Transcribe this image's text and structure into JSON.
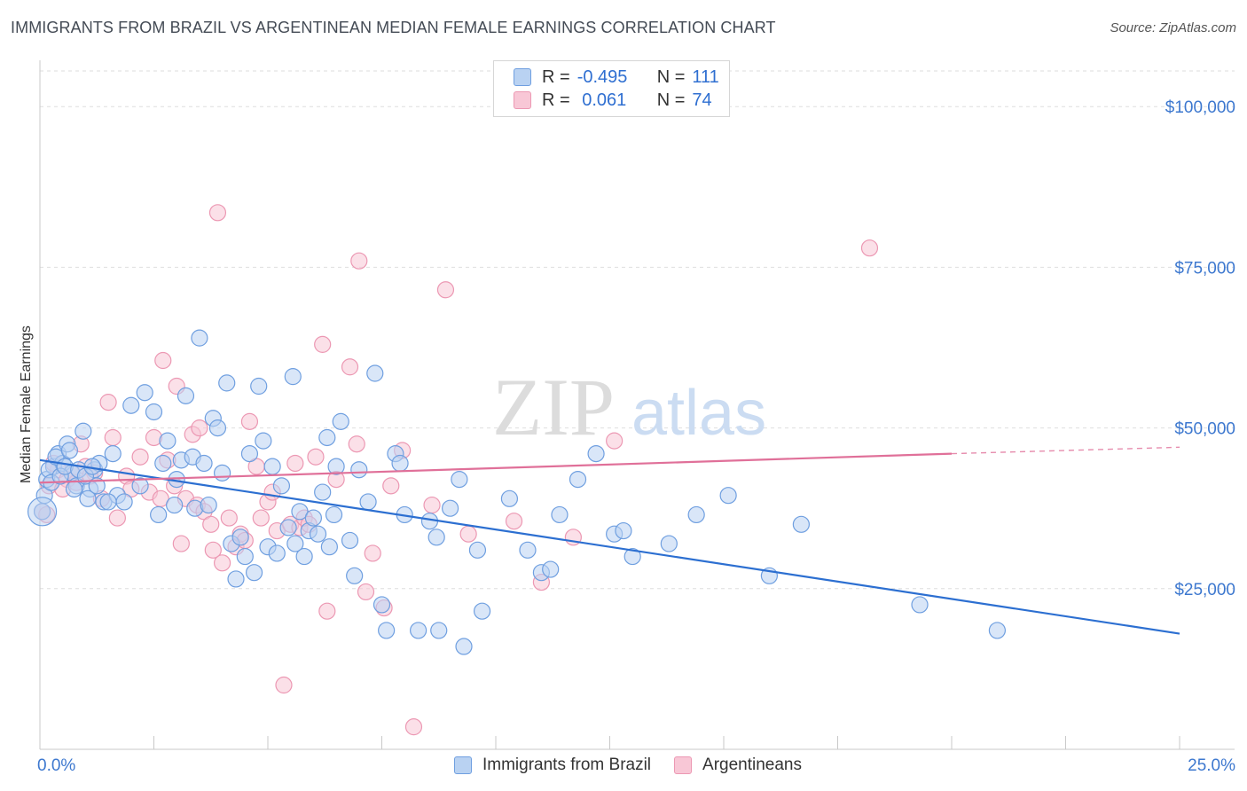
{
  "title": "IMMIGRANTS FROM BRAZIL VS ARGENTINEAN MEDIAN FEMALE EARNINGS CORRELATION CHART",
  "source": "Source: ZipAtlas.com",
  "watermark": {
    "zip": "ZIP",
    "atlas": "atlas"
  },
  "legend": {
    "rows": [
      {
        "r_label": "R =",
        "r_value": "-0.495",
        "n_label": "N =",
        "n_value": "111"
      },
      {
        "r_label": "R =",
        "r_value": " 0.061",
        "n_label": "N =",
        "n_value": "74"
      }
    ]
  },
  "colors": {
    "blue_fill": "#b9d2f2",
    "blue_stroke": "#6f9fe0",
    "blue_line": "#2c6fd1",
    "pink_fill": "#f8c7d6",
    "pink_stroke": "#ec98b3",
    "pink_line": "#e07099",
    "axis_text": "#3d78cf",
    "grid": "#dedede"
  },
  "chart_data": {
    "type": "scatter",
    "title": "IMMIGRANTS FROM BRAZIL VS ARGENTINEAN MEDIAN FEMALE EARNINGS CORRELATION CHART",
    "xlabel": "",
    "ylabel": "Median Female Earnings",
    "xlim": [
      0,
      25
    ],
    "ylim": [
      0,
      105000
    ],
    "x_tick_labels": [
      "0.0%",
      "25.0%"
    ],
    "y_ticks": [
      25000,
      50000,
      75000,
      100000
    ],
    "y_tick_labels": [
      "$25,000",
      "$50,000",
      "$75,000",
      "$100,000"
    ],
    "grid": true,
    "legend_position": "bottom",
    "series": [
      {
        "name": "Immigrants from Brazil",
        "r": -0.495,
        "n": 111,
        "trend": {
          "x0": 0,
          "y0": 45000,
          "x1": 25,
          "y1": 18000
        },
        "points": [
          [
            0.05,
            37000
          ],
          [
            0.15,
            42000
          ],
          [
            0.3,
            44000
          ],
          [
            0.4,
            46000
          ],
          [
            0.5,
            44500
          ],
          [
            0.6,
            47500
          ],
          [
            0.7,
            43000
          ],
          [
            0.8,
            41000
          ],
          [
            0.95,
            49500
          ],
          [
            1.1,
            40500
          ],
          [
            1.2,
            43500
          ],
          [
            1.3,
            44500
          ],
          [
            1.4,
            38500
          ],
          [
            1.6,
            46000
          ],
          [
            1.7,
            39500
          ],
          [
            1.85,
            38500
          ],
          [
            2.0,
            53500
          ],
          [
            2.2,
            41000
          ],
          [
            2.3,
            55500
          ],
          [
            2.5,
            52500
          ],
          [
            2.6,
            36500
          ],
          [
            2.7,
            44500
          ],
          [
            2.8,
            48000
          ],
          [
            2.95,
            38000
          ],
          [
            3.1,
            45000
          ],
          [
            3.2,
            55000
          ],
          [
            3.35,
            45500
          ],
          [
            3.4,
            37500
          ],
          [
            3.5,
            64000
          ],
          [
            3.6,
            44500
          ],
          [
            3.7,
            38000
          ],
          [
            3.8,
            51500
          ],
          [
            3.9,
            50000
          ],
          [
            4.0,
            43000
          ],
          [
            4.1,
            57000
          ],
          [
            4.2,
            32000
          ],
          [
            4.3,
            26500
          ],
          [
            4.4,
            33000
          ],
          [
            4.5,
            30000
          ],
          [
            4.6,
            46000
          ],
          [
            4.7,
            27500
          ],
          [
            4.8,
            56500
          ],
          [
            4.9,
            48000
          ],
          [
            5.0,
            31500
          ],
          [
            5.1,
            44000
          ],
          [
            5.2,
            30500
          ],
          [
            5.3,
            41000
          ],
          [
            5.45,
            34500
          ],
          [
            5.55,
            58000
          ],
          [
            5.6,
            32000
          ],
          [
            5.7,
            37000
          ],
          [
            5.8,
            30000
          ],
          [
            5.9,
            34000
          ],
          [
            6.0,
            36000
          ],
          [
            6.1,
            33500
          ],
          [
            6.2,
            40000
          ],
          [
            6.3,
            48500
          ],
          [
            6.35,
            31500
          ],
          [
            6.45,
            36500
          ],
          [
            6.5,
            44000
          ],
          [
            6.6,
            51000
          ],
          [
            6.8,
            32500
          ],
          [
            6.9,
            27000
          ],
          [
            7.0,
            43500
          ],
          [
            7.2,
            38500
          ],
          [
            7.35,
            58500
          ],
          [
            7.5,
            22500
          ],
          [
            7.6,
            18500
          ],
          [
            7.8,
            46000
          ],
          [
            7.9,
            44500
          ],
          [
            8.0,
            36500
          ],
          [
            8.3,
            18500
          ],
          [
            8.55,
            35500
          ],
          [
            8.7,
            33000
          ],
          [
            8.75,
            18500
          ],
          [
            9.0,
            37500
          ],
          [
            9.2,
            42000
          ],
          [
            9.3,
            16000
          ],
          [
            9.6,
            31000
          ],
          [
            9.7,
            21500
          ],
          [
            10.3,
            39000
          ],
          [
            10.7,
            31000
          ],
          [
            11.0,
            27500
          ],
          [
            11.2,
            28000
          ],
          [
            11.4,
            36500
          ],
          [
            11.8,
            42000
          ],
          [
            12.2,
            46000
          ],
          [
            12.6,
            33500
          ],
          [
            12.8,
            34000
          ],
          [
            13.0,
            30000
          ],
          [
            13.8,
            32000
          ],
          [
            14.4,
            36500
          ],
          [
            15.1,
            39500
          ],
          [
            16.0,
            27000
          ],
          [
            16.7,
            35000
          ],
          [
            19.3,
            22500
          ],
          [
            21.0,
            18500
          ],
          [
            0.1,
            39500
          ],
          [
            0.2,
            43500
          ],
          [
            0.25,
            41500
          ],
          [
            0.35,
            45500
          ],
          [
            0.45,
            42500
          ],
          [
            0.55,
            44000
          ],
          [
            0.65,
            46500
          ],
          [
            0.75,
            40500
          ],
          [
            0.85,
            43500
          ],
          [
            1.0,
            42500
          ],
          [
            1.05,
            39000
          ],
          [
            1.15,
            44000
          ],
          [
            1.25,
            41000
          ],
          [
            1.5,
            38500
          ],
          [
            3.0,
            42000
          ]
        ]
      },
      {
        "name": "Argentineans",
        "r": 0.061,
        "n": 74,
        "trend": {
          "x0": 0,
          "y0": 41500,
          "x1": 20,
          "y1": 46000,
          "dash_to": {
            "x": 25,
            "y": 47000
          }
        },
        "points": [
          [
            0.05,
            37000
          ],
          [
            0.2,
            41000
          ],
          [
            0.4,
            43500
          ],
          [
            0.6,
            42000
          ],
          [
            0.8,
            41500
          ],
          [
            0.9,
            47500
          ],
          [
            1.0,
            44000
          ],
          [
            1.2,
            43000
          ],
          [
            1.35,
            39000
          ],
          [
            1.5,
            54000
          ],
          [
            1.6,
            48500
          ],
          [
            1.7,
            36000
          ],
          [
            1.9,
            42500
          ],
          [
            2.0,
            40500
          ],
          [
            2.2,
            45500
          ],
          [
            2.4,
            40000
          ],
          [
            2.5,
            48500
          ],
          [
            2.65,
            39000
          ],
          [
            2.7,
            60500
          ],
          [
            2.8,
            45000
          ],
          [
            2.95,
            41000
          ],
          [
            3.0,
            56500
          ],
          [
            3.1,
            32000
          ],
          [
            3.2,
            39000
          ],
          [
            3.35,
            49000
          ],
          [
            3.45,
            38000
          ],
          [
            3.5,
            50000
          ],
          [
            3.6,
            37000
          ],
          [
            3.75,
            35000
          ],
          [
            3.8,
            31000
          ],
          [
            3.9,
            83500
          ],
          [
            4.0,
            29000
          ],
          [
            4.15,
            36000
          ],
          [
            4.3,
            31500
          ],
          [
            4.4,
            33500
          ],
          [
            4.5,
            32500
          ],
          [
            4.6,
            51000
          ],
          [
            4.75,
            44000
          ],
          [
            4.85,
            36000
          ],
          [
            5.0,
            38500
          ],
          [
            5.1,
            40000
          ],
          [
            5.2,
            34000
          ],
          [
            5.35,
            10000
          ],
          [
            5.5,
            35000
          ],
          [
            5.6,
            44500
          ],
          [
            5.7,
            34500
          ],
          [
            5.8,
            36000
          ],
          [
            5.9,
            35000
          ],
          [
            6.05,
            45500
          ],
          [
            6.2,
            63000
          ],
          [
            6.3,
            21500
          ],
          [
            6.5,
            42000
          ],
          [
            6.8,
            59500
          ],
          [
            6.95,
            47500
          ],
          [
            7.0,
            76000
          ],
          [
            7.15,
            24500
          ],
          [
            7.3,
            30500
          ],
          [
            7.55,
            22000
          ],
          [
            7.7,
            41000
          ],
          [
            7.95,
            46500
          ],
          [
            8.2,
            3500
          ],
          [
            8.6,
            38000
          ],
          [
            8.9,
            71500
          ],
          [
            9.4,
            33500
          ],
          [
            10.4,
            35500
          ],
          [
            11.0,
            26000
          ],
          [
            11.7,
            33000
          ],
          [
            12.6,
            48000
          ],
          [
            18.2,
            78000
          ],
          [
            0.3,
            44500
          ],
          [
            0.5,
            40500
          ],
          [
            0.7,
            43000
          ],
          [
            1.1,
            42500
          ],
          [
            0.15,
            36500
          ]
        ]
      }
    ]
  },
  "bottom_legend": {
    "items": [
      {
        "label": "Immigrants from Brazil"
      },
      {
        "label": "Argentineans"
      }
    ]
  }
}
